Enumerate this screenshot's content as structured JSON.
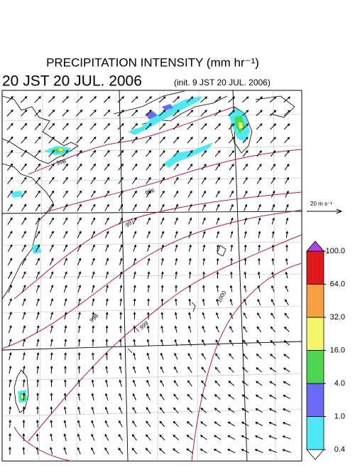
{
  "title": "PRECIPITATION INTENSITY (mm hr⁻¹)",
  "valid_time": "20 JST 20 JUL. 2006",
  "init_time": "(init. 9 JST 20 JUL. 2006)",
  "vector_scale": "20 m s⁻¹",
  "colorbar": {
    "ticks": [
      {
        "value": 0.4,
        "label": "0.4"
      },
      {
        "value": 1,
        "label": "1.0"
      },
      {
        "value": 4,
        "label": "4.0"
      },
      {
        "value": 16,
        "label": "16.0"
      },
      {
        "value": 32,
        "label": "32.0"
      },
      {
        "value": 64,
        "label": "64.0"
      },
      {
        "value": 100,
        "label": "100.0"
      }
    ],
    "colors": [
      "#4fe8f5",
      "#6a6af5",
      "#4fd54f",
      "#f5f56a",
      "#f5a040",
      "#e01a1a"
    ],
    "over_color": "#b040f0",
    "under_color": "#ffffff"
  },
  "contour_labels": [
    "998",
    "996",
    "997",
    "998",
    "999",
    "1000"
  ]
}
